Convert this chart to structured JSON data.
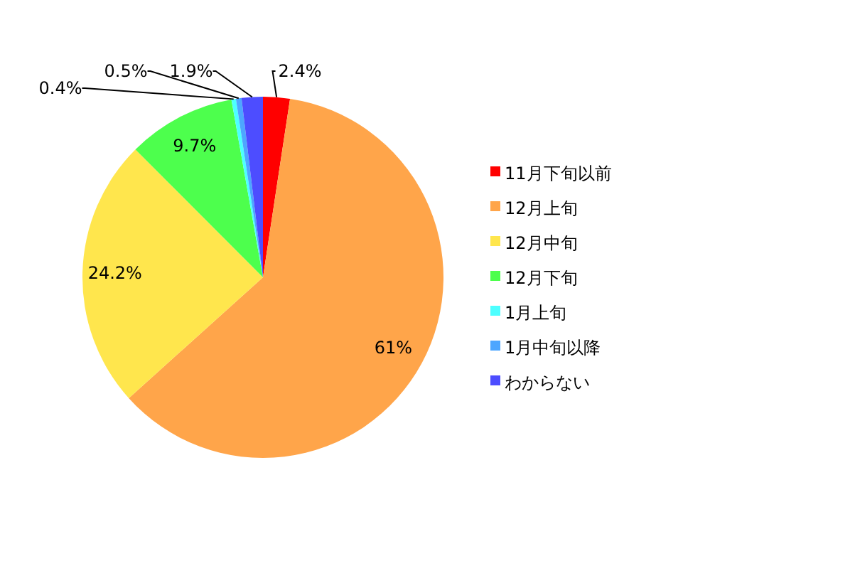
{
  "chart_data": {
    "type": "pie",
    "categories": [
      "11月下旬以前",
      "12月上旬",
      "12月中旬",
      "12月下旬",
      "1月上旬",
      "1月中旬以降",
      "わからない"
    ],
    "values": [
      2.4,
      61,
      24.2,
      9.7,
      0.4,
      0.5,
      1.9
    ],
    "colors": [
      "#ff0000",
      "#ffa54a",
      "#ffe64d",
      "#4dff4d",
      "#4dffff",
      "#4da6ff",
      "#4d4dff"
    ],
    "value_labels": [
      "2.4%",
      "61%",
      "24.2%",
      "9.7%",
      "0.4%",
      "0.5%",
      "1.9%"
    ],
    "legend": "right"
  }
}
